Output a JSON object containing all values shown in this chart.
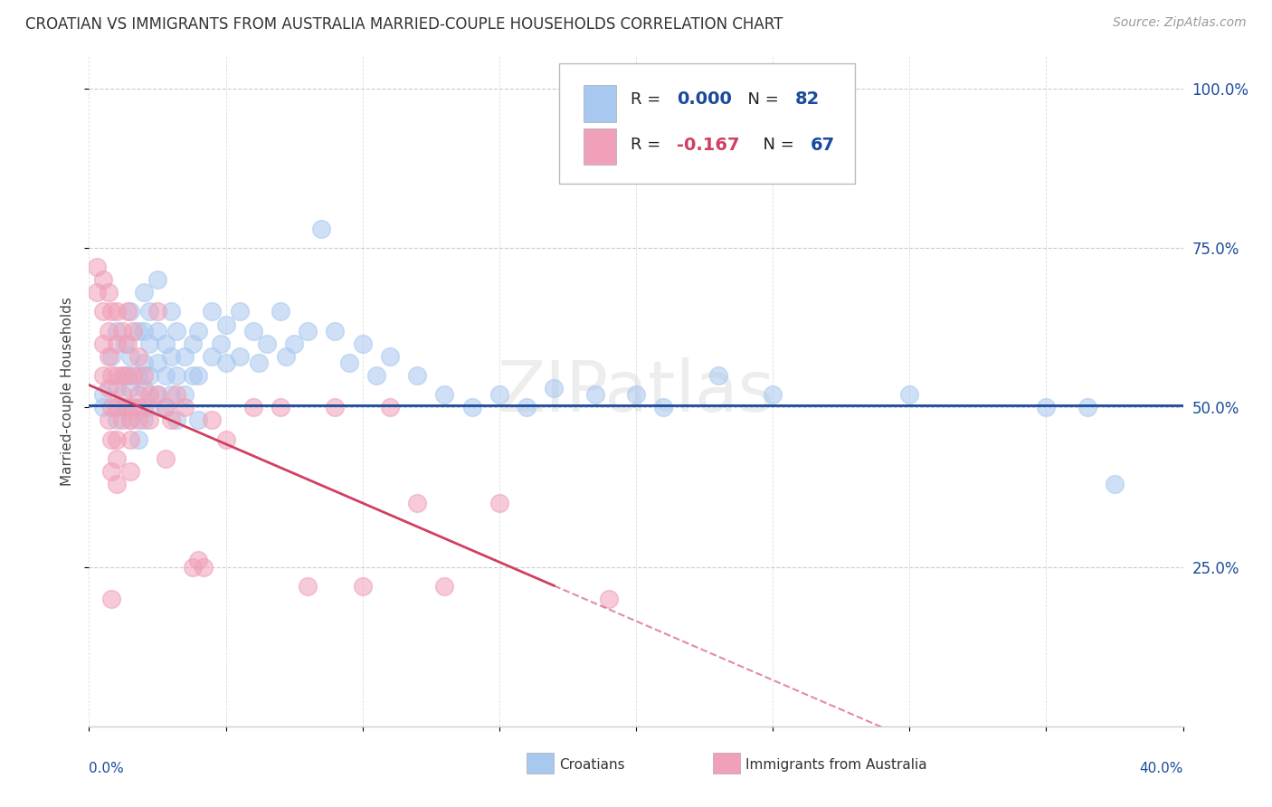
{
  "title": "CROATIAN VS IMMIGRANTS FROM AUSTRALIA MARRIED-COUPLE HOUSEHOLDS CORRELATION CHART",
  "source": "Source: ZipAtlas.com",
  "ylabel": "Married-couple Households",
  "ytick_labels": [
    "100.0%",
    "75.0%",
    "50.0%",
    "25.0%"
  ],
  "ytick_values": [
    1.0,
    0.75,
    0.5,
    0.25
  ],
  "xlim": [
    0.0,
    0.4
  ],
  "ylim": [
    0.0,
    1.05
  ],
  "legend_label1": "Croatians",
  "legend_label2": "Immigrants from Australia",
  "R1": 0.0,
  "N1": 82,
  "R2": -0.167,
  "N2": 67,
  "watermark": "ZIPatlas",
  "blue_color": "#A8C8F0",
  "pink_color": "#F0A0B8",
  "blue_line_color": "#1A4A9C",
  "pink_line_color": "#D04060",
  "pink_line_solid_end": 0.17,
  "blue_trend_y": 0.503,
  "pink_trend_intercept": 0.535,
  "pink_trend_slope": -1.85,
  "blue_scatter": [
    [
      0.005,
      0.52
    ],
    [
      0.005,
      0.5
    ],
    [
      0.008,
      0.58
    ],
    [
      0.01,
      0.53
    ],
    [
      0.01,
      0.5
    ],
    [
      0.01,
      0.48
    ],
    [
      0.01,
      0.62
    ],
    [
      0.013,
      0.6
    ],
    [
      0.013,
      0.55
    ],
    [
      0.013,
      0.5
    ],
    [
      0.015,
      0.65
    ],
    [
      0.015,
      0.58
    ],
    [
      0.015,
      0.53
    ],
    [
      0.015,
      0.48
    ],
    [
      0.018,
      0.62
    ],
    [
      0.018,
      0.55
    ],
    [
      0.018,
      0.5
    ],
    [
      0.018,
      0.45
    ],
    [
      0.02,
      0.68
    ],
    [
      0.02,
      0.62
    ],
    [
      0.02,
      0.57
    ],
    [
      0.02,
      0.53
    ],
    [
      0.02,
      0.48
    ],
    [
      0.022,
      0.65
    ],
    [
      0.022,
      0.6
    ],
    [
      0.022,
      0.55
    ],
    [
      0.022,
      0.5
    ],
    [
      0.025,
      0.7
    ],
    [
      0.025,
      0.62
    ],
    [
      0.025,
      0.57
    ],
    [
      0.025,
      0.52
    ],
    [
      0.028,
      0.6
    ],
    [
      0.028,
      0.55
    ],
    [
      0.028,
      0.5
    ],
    [
      0.03,
      0.65
    ],
    [
      0.03,
      0.58
    ],
    [
      0.03,
      0.52
    ],
    [
      0.032,
      0.62
    ],
    [
      0.032,
      0.55
    ],
    [
      0.032,
      0.48
    ],
    [
      0.035,
      0.58
    ],
    [
      0.035,
      0.52
    ],
    [
      0.038,
      0.6
    ],
    [
      0.038,
      0.55
    ],
    [
      0.04,
      0.62
    ],
    [
      0.04,
      0.55
    ],
    [
      0.04,
      0.48
    ],
    [
      0.045,
      0.65
    ],
    [
      0.045,
      0.58
    ],
    [
      0.048,
      0.6
    ],
    [
      0.05,
      0.63
    ],
    [
      0.05,
      0.57
    ],
    [
      0.055,
      0.65
    ],
    [
      0.055,
      0.58
    ],
    [
      0.06,
      0.62
    ],
    [
      0.062,
      0.57
    ],
    [
      0.065,
      0.6
    ],
    [
      0.07,
      0.65
    ],
    [
      0.072,
      0.58
    ],
    [
      0.075,
      0.6
    ],
    [
      0.08,
      0.62
    ],
    [
      0.085,
      0.78
    ],
    [
      0.09,
      0.62
    ],
    [
      0.095,
      0.57
    ],
    [
      0.1,
      0.6
    ],
    [
      0.105,
      0.55
    ],
    [
      0.11,
      0.58
    ],
    [
      0.12,
      0.55
    ],
    [
      0.13,
      0.52
    ],
    [
      0.14,
      0.5
    ],
    [
      0.15,
      0.52
    ],
    [
      0.16,
      0.5
    ],
    [
      0.17,
      0.53
    ],
    [
      0.185,
      0.52
    ],
    [
      0.2,
      0.52
    ],
    [
      0.21,
      0.5
    ],
    [
      0.23,
      0.55
    ],
    [
      0.25,
      0.52
    ],
    [
      0.3,
      0.52
    ],
    [
      0.35,
      0.5
    ],
    [
      0.365,
      0.5
    ],
    [
      0.375,
      0.38
    ]
  ],
  "pink_scatter": [
    [
      0.003,
      0.72
    ],
    [
      0.003,
      0.68
    ],
    [
      0.005,
      0.7
    ],
    [
      0.005,
      0.65
    ],
    [
      0.005,
      0.6
    ],
    [
      0.005,
      0.55
    ],
    [
      0.007,
      0.68
    ],
    [
      0.007,
      0.62
    ],
    [
      0.007,
      0.58
    ],
    [
      0.007,
      0.53
    ],
    [
      0.007,
      0.48
    ],
    [
      0.008,
      0.65
    ],
    [
      0.008,
      0.55
    ],
    [
      0.008,
      0.5
    ],
    [
      0.008,
      0.45
    ],
    [
      0.008,
      0.4
    ],
    [
      0.008,
      0.2
    ],
    [
      0.01,
      0.65
    ],
    [
      0.01,
      0.6
    ],
    [
      0.01,
      0.55
    ],
    [
      0.01,
      0.5
    ],
    [
      0.01,
      0.45
    ],
    [
      0.01,
      0.42
    ],
    [
      0.01,
      0.38
    ],
    [
      0.012,
      0.62
    ],
    [
      0.012,
      0.55
    ],
    [
      0.012,
      0.52
    ],
    [
      0.012,
      0.48
    ],
    [
      0.014,
      0.65
    ],
    [
      0.014,
      0.6
    ],
    [
      0.014,
      0.55
    ],
    [
      0.014,
      0.5
    ],
    [
      0.015,
      0.48
    ],
    [
      0.015,
      0.45
    ],
    [
      0.015,
      0.4
    ],
    [
      0.016,
      0.62
    ],
    [
      0.016,
      0.55
    ],
    [
      0.016,
      0.5
    ],
    [
      0.018,
      0.58
    ],
    [
      0.018,
      0.52
    ],
    [
      0.018,
      0.48
    ],
    [
      0.02,
      0.55
    ],
    [
      0.02,
      0.5
    ],
    [
      0.022,
      0.52
    ],
    [
      0.022,
      0.48
    ],
    [
      0.025,
      0.65
    ],
    [
      0.025,
      0.52
    ],
    [
      0.028,
      0.5
    ],
    [
      0.028,
      0.42
    ],
    [
      0.03,
      0.48
    ],
    [
      0.032,
      0.52
    ],
    [
      0.035,
      0.5
    ],
    [
      0.038,
      0.25
    ],
    [
      0.04,
      0.26
    ],
    [
      0.042,
      0.25
    ],
    [
      0.045,
      0.48
    ],
    [
      0.05,
      0.45
    ],
    [
      0.06,
      0.5
    ],
    [
      0.07,
      0.5
    ],
    [
      0.08,
      0.22
    ],
    [
      0.09,
      0.5
    ],
    [
      0.1,
      0.22
    ],
    [
      0.11,
      0.5
    ],
    [
      0.12,
      0.35
    ],
    [
      0.13,
      0.22
    ],
    [
      0.15,
      0.35
    ],
    [
      0.19,
      0.2
    ]
  ]
}
